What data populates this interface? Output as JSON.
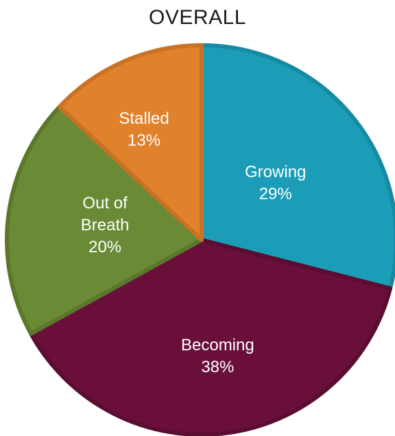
{
  "chart_data": {
    "type": "pie",
    "title": "OVERALL",
    "slices": [
      {
        "label": [
          "Growing"
        ],
        "pct_label": "29%",
        "value": 29,
        "color": "#1b9db8",
        "edge": "#168aa2"
      },
      {
        "label": [
          "Becoming"
        ],
        "pct_label": "38%",
        "value": 38,
        "color": "#6a0f3a",
        "edge": "#5a0d31"
      },
      {
        "label": [
          "Out of",
          "Breath"
        ],
        "pct_label": "20%",
        "value": 20,
        "color": "#6a8a35",
        "edge": "#5b772c"
      },
      {
        "label": [
          "Stalled"
        ],
        "pct_label": "13%",
        "value": 13,
        "color": "#e0812c",
        "edge": "#c97224"
      }
    ],
    "start_angle_deg": 0,
    "direction": "clockwise"
  }
}
